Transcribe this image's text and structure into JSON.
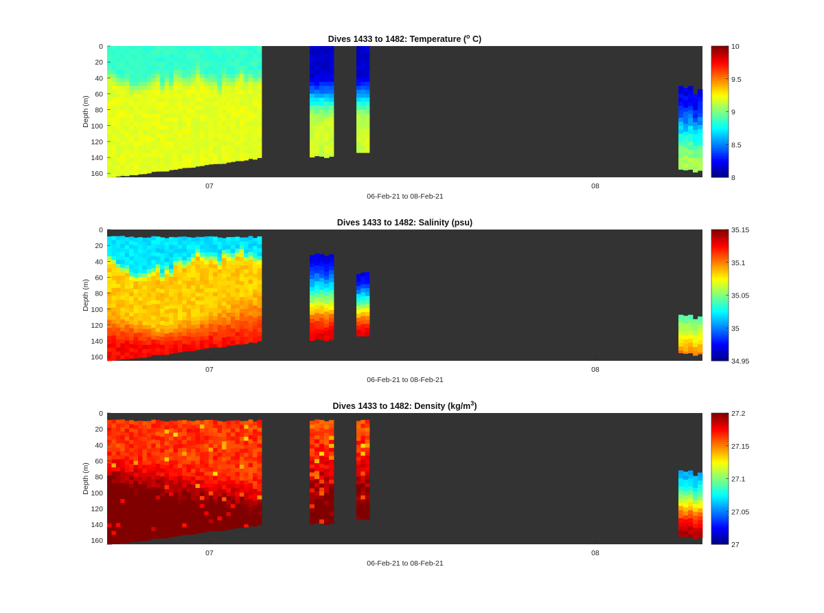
{
  "chart_data": [
    {
      "type": "heatmap",
      "title_prefix": "Dives 1433 to 1482: Temperature (",
      "title_sup": "o",
      "title_suffix": " C)",
      "ylabel": "Depth (m)",
      "xlabel": "06-Feb-21 to 08-Feb-21",
      "xticks": [
        "07",
        "08"
      ],
      "yticks": [
        "0",
        "20",
        "40",
        "60",
        "80",
        "100",
        "120",
        "140",
        "160"
      ],
      "ylim": [
        0,
        165
      ],
      "clim": [
        8,
        10
      ],
      "colorbar_ticks": [
        "8",
        "8.5",
        "9",
        "9.5",
        "10"
      ],
      "colormap": "jet",
      "background": "#333333",
      "field": "temperature"
    },
    {
      "type": "heatmap",
      "title_prefix": "Dives 1433 to 1482: Salinity (psu)",
      "title_sup": "",
      "title_suffix": "",
      "ylabel": "Depth (m)",
      "xlabel": "06-Feb-21 to 08-Feb-21",
      "xticks": [
        "07",
        "08"
      ],
      "yticks": [
        "0",
        "20",
        "40",
        "60",
        "80",
        "100",
        "120",
        "140",
        "160"
      ],
      "ylim": [
        0,
        165
      ],
      "clim": [
        34.95,
        35.15
      ],
      "colorbar_ticks": [
        "34.95",
        "35",
        "35.05",
        "35.1",
        "35.15"
      ],
      "colormap": "jet",
      "background": "#333333",
      "field": "salinity"
    },
    {
      "type": "heatmap",
      "title_prefix": "Dives 1433 to 1482: Density (kg/m",
      "title_sup": "3",
      "title_suffix": ")",
      "ylabel": "Depth (m)",
      "xlabel": "06-Feb-21 to 08-Feb-21",
      "xticks": [
        "07",
        "08"
      ],
      "yticks": [
        "0",
        "20",
        "40",
        "60",
        "80",
        "100",
        "120",
        "140",
        "160"
      ],
      "ylim": [
        0,
        165
      ],
      "clim": [
        27,
        27.2
      ],
      "colorbar_ticks": [
        "27",
        "27.05",
        "27.1",
        "27.15",
        "27.2"
      ],
      "colormap": "jet",
      "background": "#333333",
      "field": "density"
    }
  ]
}
